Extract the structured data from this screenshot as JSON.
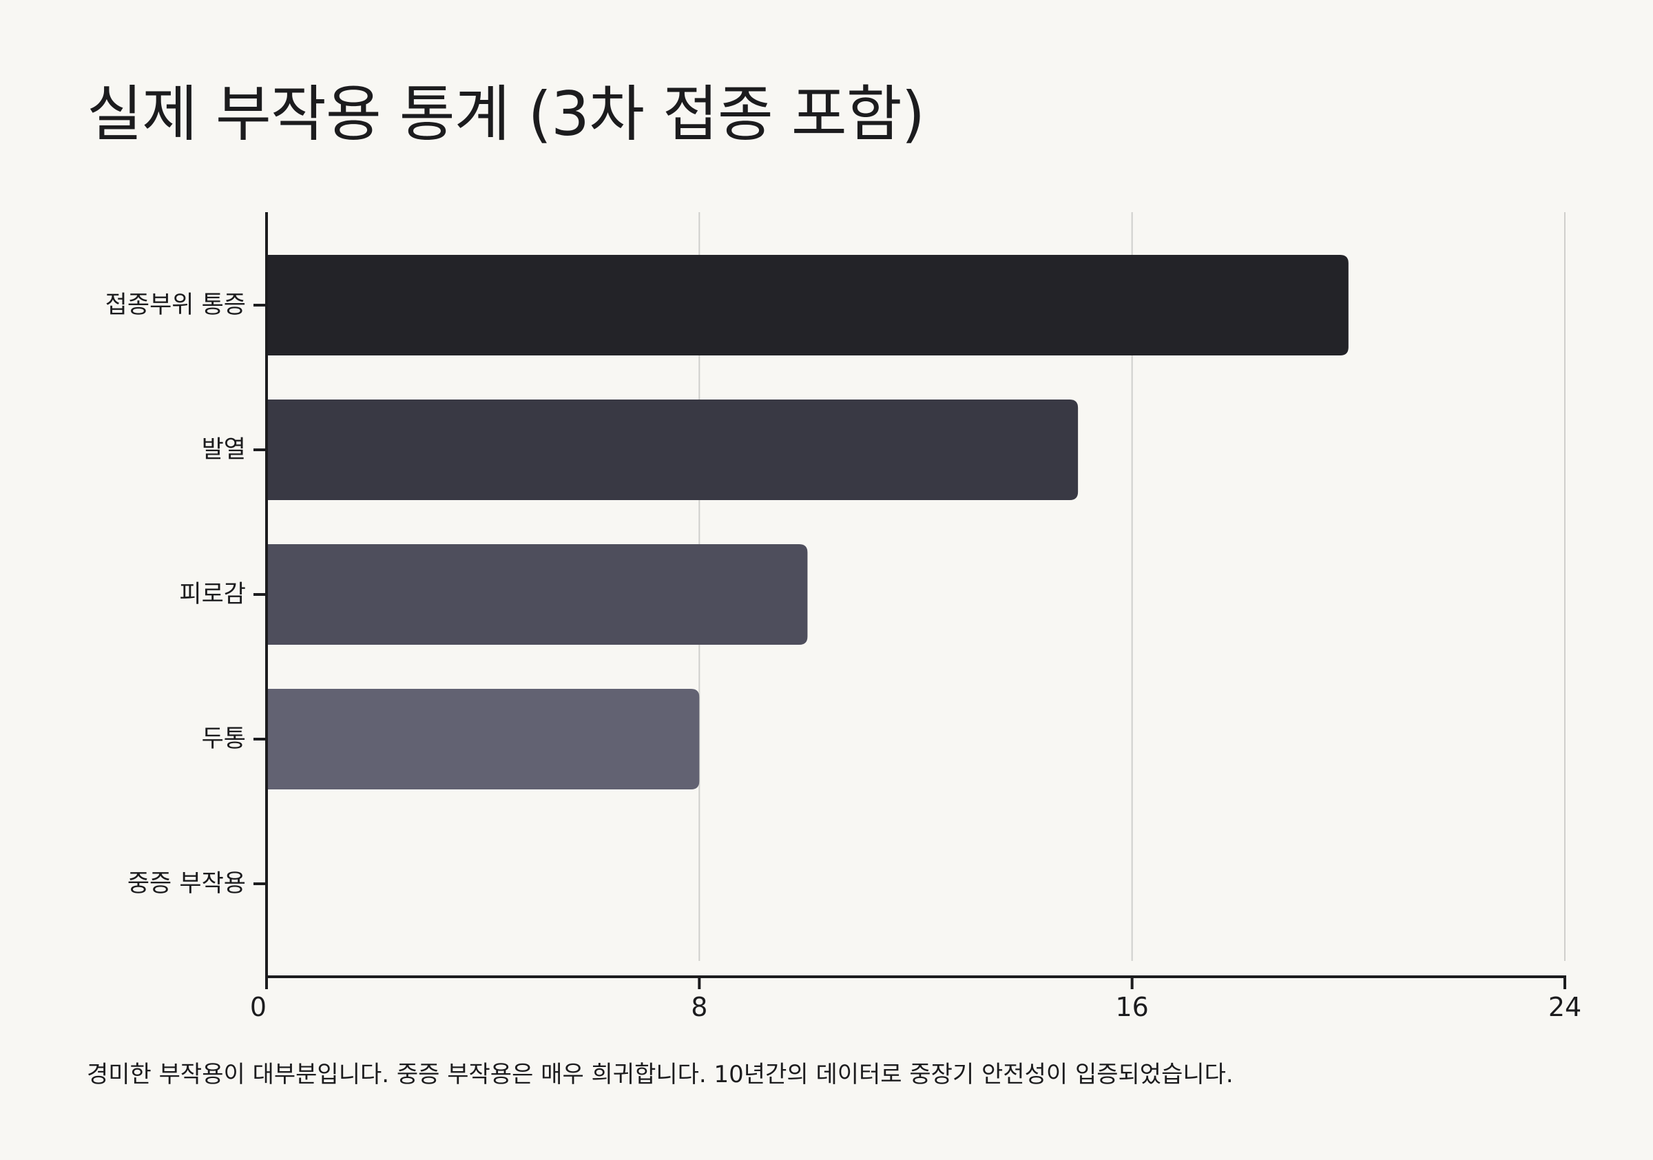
{
  "chart_data": {
    "type": "bar",
    "orientation": "horizontal",
    "title": "실제 부작용 통계 (3차 접종 포함)",
    "categories": [
      "접종부위 통증",
      "발열",
      "피로감",
      "두통",
      "중증 부작용"
    ],
    "values": [
      20,
      15,
      10,
      8,
      0
    ],
    "colors": [
      "#232328",
      "#393944",
      "#4e4e5c",
      "#626272",
      "#72727f"
    ],
    "xlim": [
      0,
      24
    ],
    "xticks": [
      0,
      8,
      16,
      24
    ],
    "grid": true,
    "caption": "경미한 부작용이 대부분입니다. 중증 부작용은 매우 희귀합니다. 10년간의 데이터로 중장기 안전성이 입증되었습니다."
  }
}
